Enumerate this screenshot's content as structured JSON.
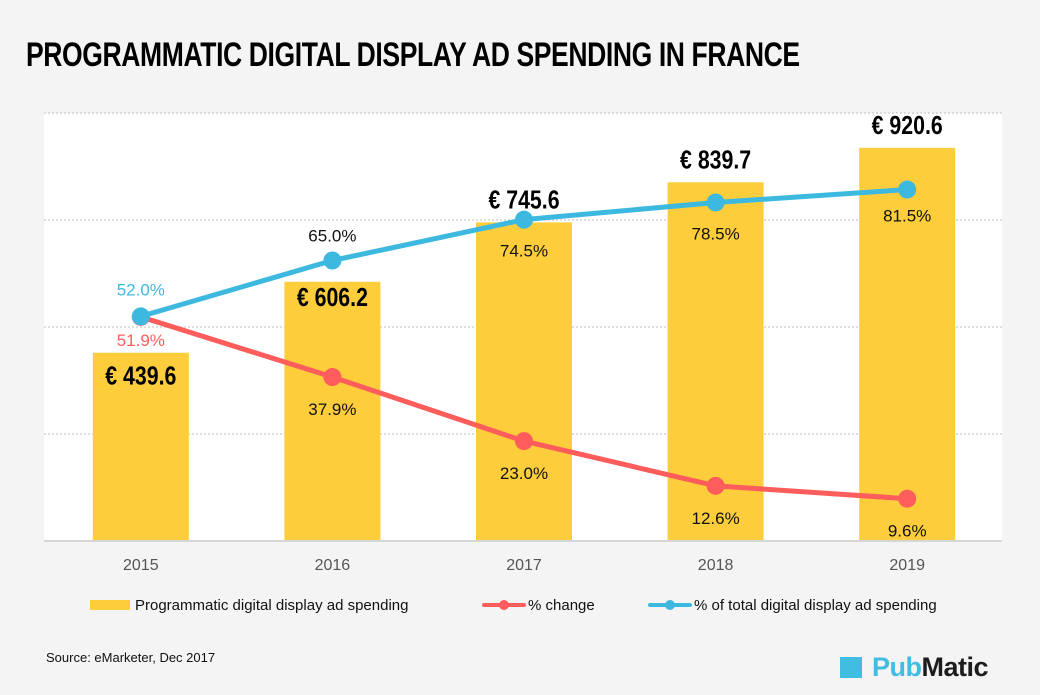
{
  "title": "PROGRAMMATIC DIGITAL DISPLAY AD SPENDING IN FRANCE",
  "colors": {
    "bar": "#fdcd3c",
    "change_line": "#ff5c5c",
    "share_line": "#3db9e0",
    "background": "#f4f4f4",
    "plot_background": "#ffffff"
  },
  "chart_data": {
    "type": "bar",
    "title": "PROGRAMMATIC DIGITAL DISPLAY AD SPENDING IN FRANCE",
    "xlabel": "",
    "ylabel": "",
    "categories": [
      "2015",
      "2016",
      "2017",
      "2018",
      "2019"
    ],
    "grid": true,
    "ylim": [
      0,
      1000
    ],
    "y2lim": [
      0,
      100
    ],
    "legend_position": "bottom",
    "series": [
      {
        "name": "Programmatic digital display ad spending",
        "type": "bar",
        "axis": "left",
        "values": [
          439.6,
          606.2,
          745.6,
          839.7,
          920.6
        ],
        "labels": [
          "€ 439.6",
          "€ 606.2",
          "€ 745.6",
          "€ 839.7",
          "€ 920.6"
        ]
      },
      {
        "name": "% change",
        "type": "line",
        "axis": "right",
        "values": [
          51.9,
          37.9,
          23.0,
          12.6,
          9.6
        ],
        "labels": [
          "51.9%",
          "37.9%",
          "23.0%",
          "12.6%",
          "9.6%"
        ]
      },
      {
        "name": "% of total digital display ad spending",
        "type": "line",
        "axis": "right",
        "values": [
          52.0,
          65.0,
          74.5,
          78.5,
          81.5
        ],
        "labels": [
          "52.0%",
          "65.0%",
          "74.5%",
          "78.5%",
          "81.5%"
        ]
      }
    ]
  },
  "legend": [
    {
      "label": "Programmatic digital display ad spending",
      "kind": "bar"
    },
    {
      "label": "% change",
      "kind": "line-red"
    },
    {
      "label": "% of total digital display ad spending",
      "kind": "line-blue"
    }
  ],
  "source": "Source: eMarketer,  Dec 2017",
  "logo": {
    "part1": "Pub",
    "part2": "Matic"
  }
}
